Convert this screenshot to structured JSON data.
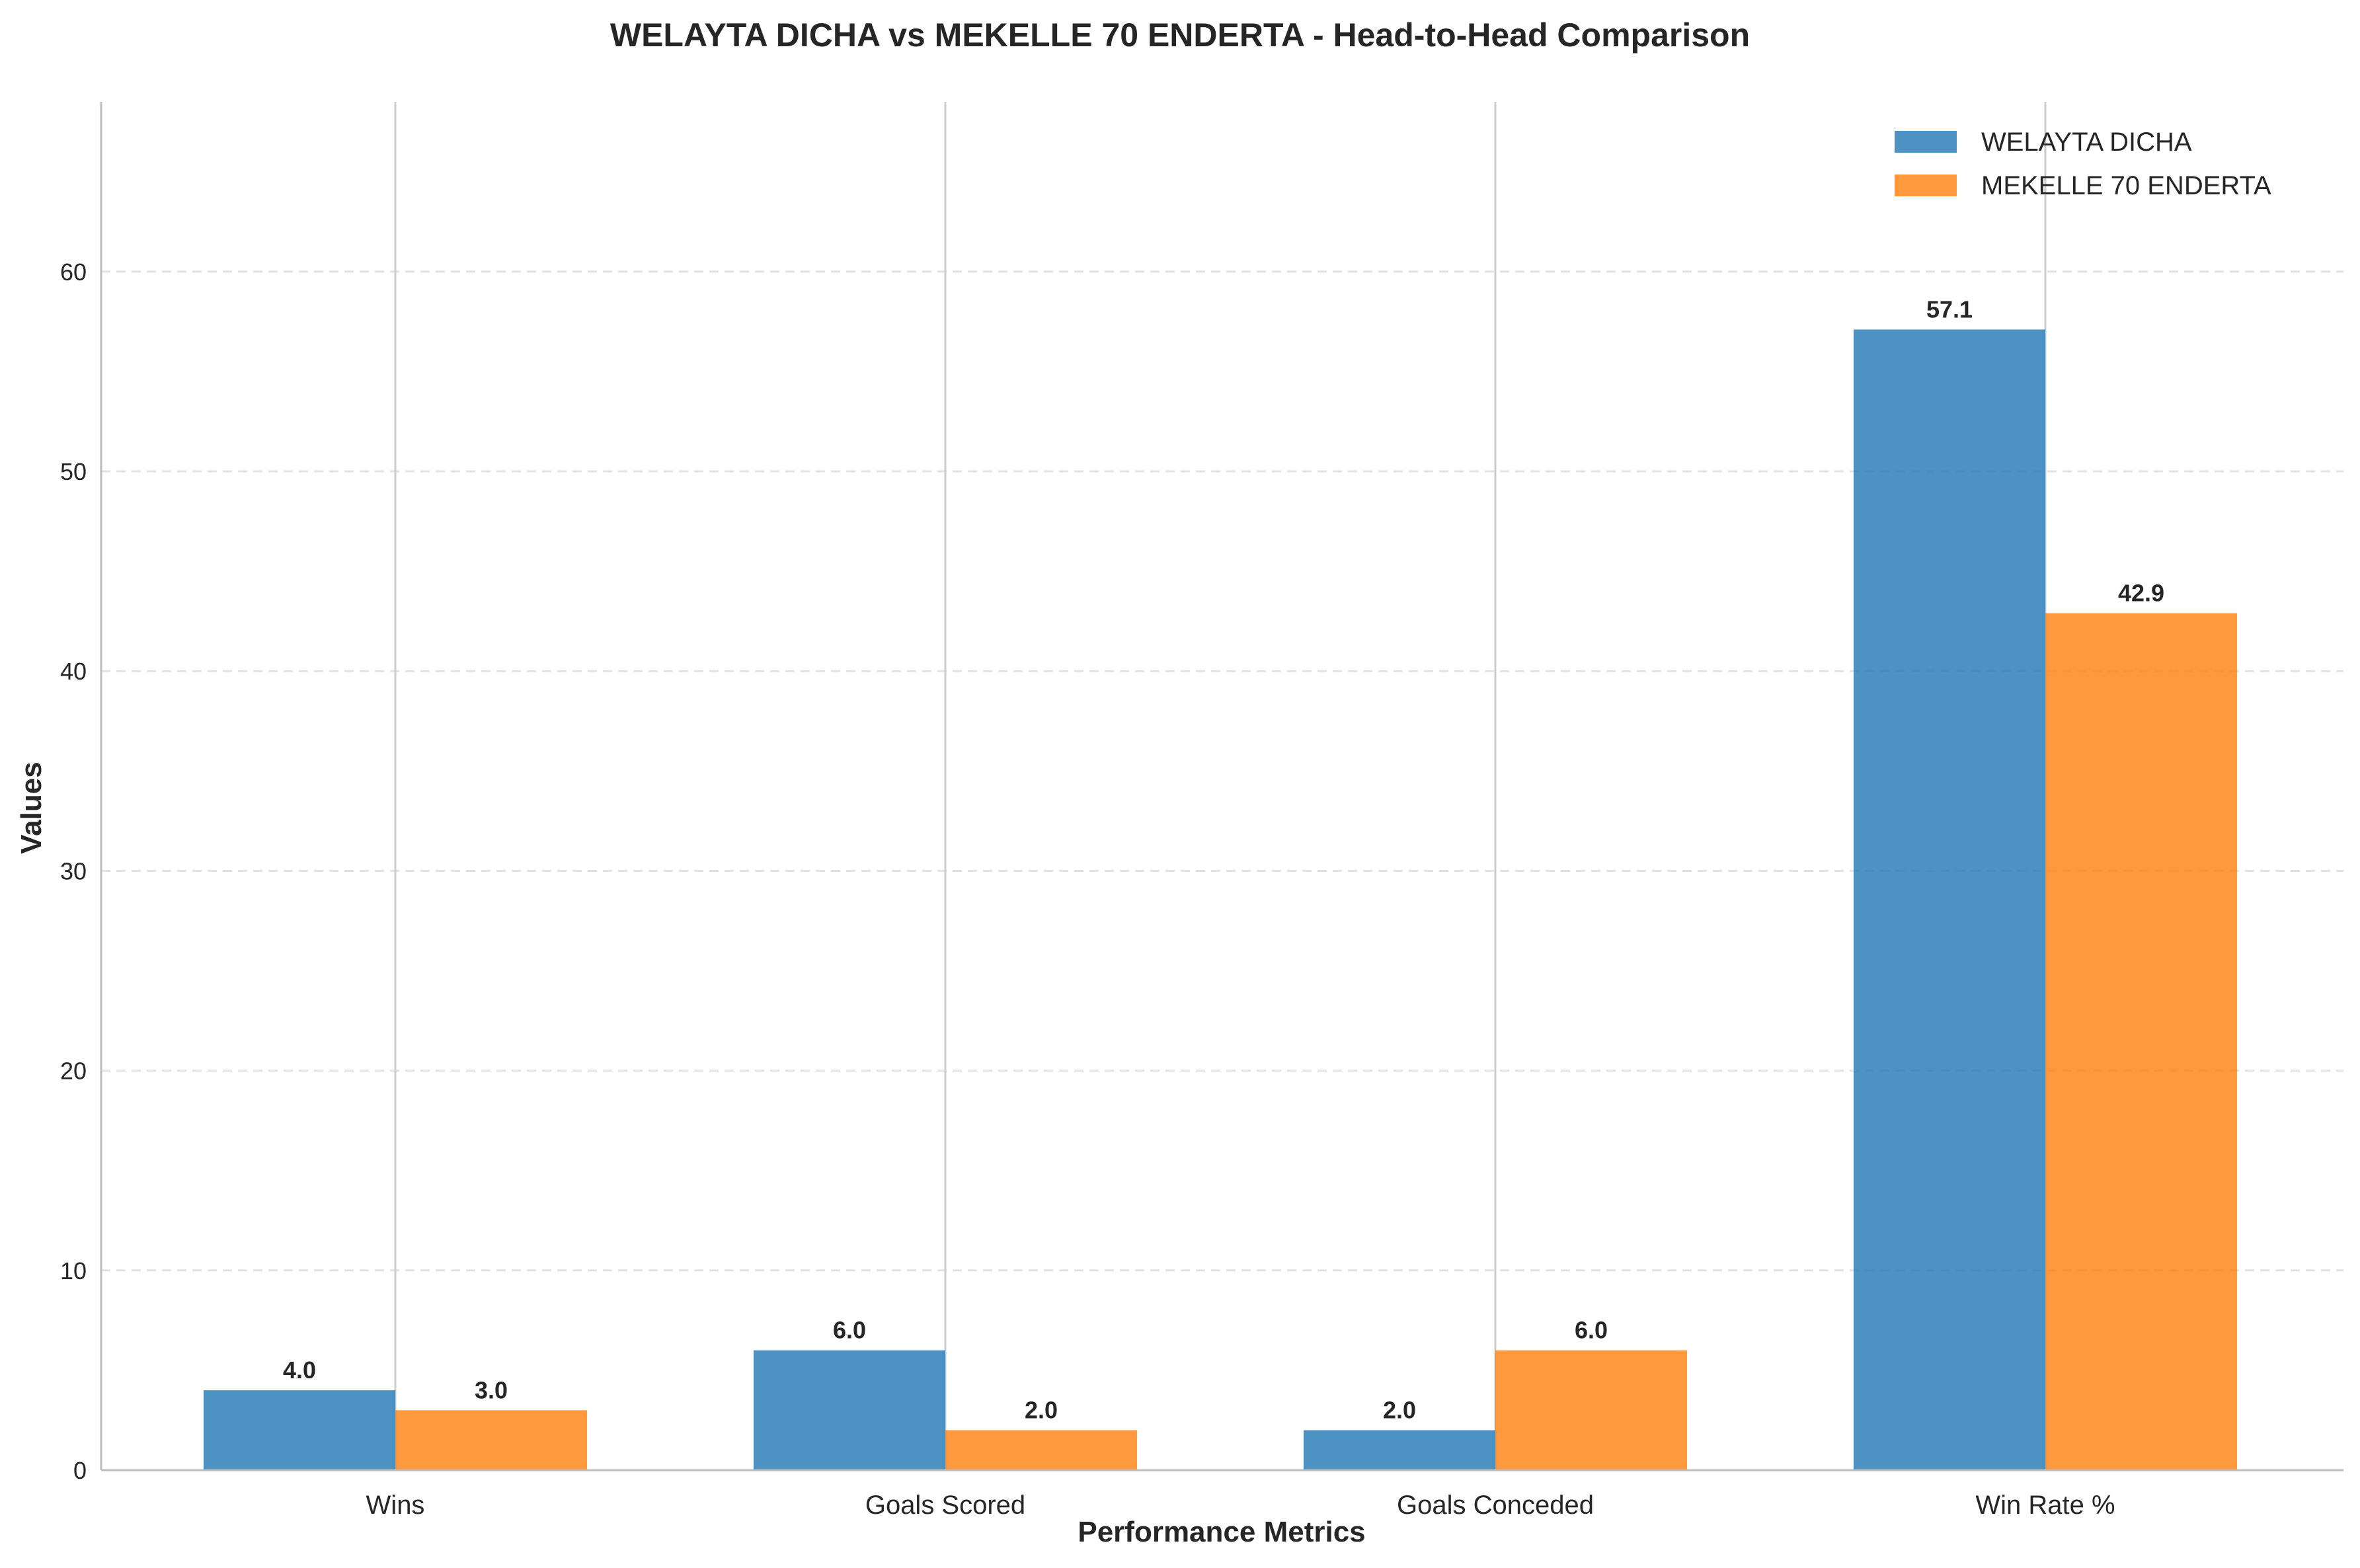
{
  "chart_data": {
    "type": "bar",
    "title": "WELAYTA DICHA vs MEKELLE 70 ENDERTA - Head-to-Head Comparison",
    "xlabel": "Performance Metrics",
    "ylabel": "Values",
    "categories": [
      "Wins",
      "Goals Scored",
      "Goals Conceded",
      "Win Rate %"
    ],
    "series": [
      {
        "name": "WELAYTA DICHA",
        "color": "#1f77b4",
        "values": [
          4.0,
          6.0,
          2.0,
          57.1
        ],
        "labels": [
          "4.0",
          "6.0",
          "2.0",
          "57.1"
        ]
      },
      {
        "name": "MEKELLE 70 ENDERTA",
        "color": "#ff7f0e",
        "values": [
          3.0,
          2.0,
          6.0,
          42.9
        ],
        "labels": [
          "3.0",
          "2.0",
          "6.0",
          "42.9"
        ]
      }
    ],
    "yticks": [
      0,
      10,
      20,
      30,
      40,
      50,
      60
    ],
    "ylim": [
      0,
      68.5
    ],
    "grid": true,
    "legend_position": "top-right"
  }
}
